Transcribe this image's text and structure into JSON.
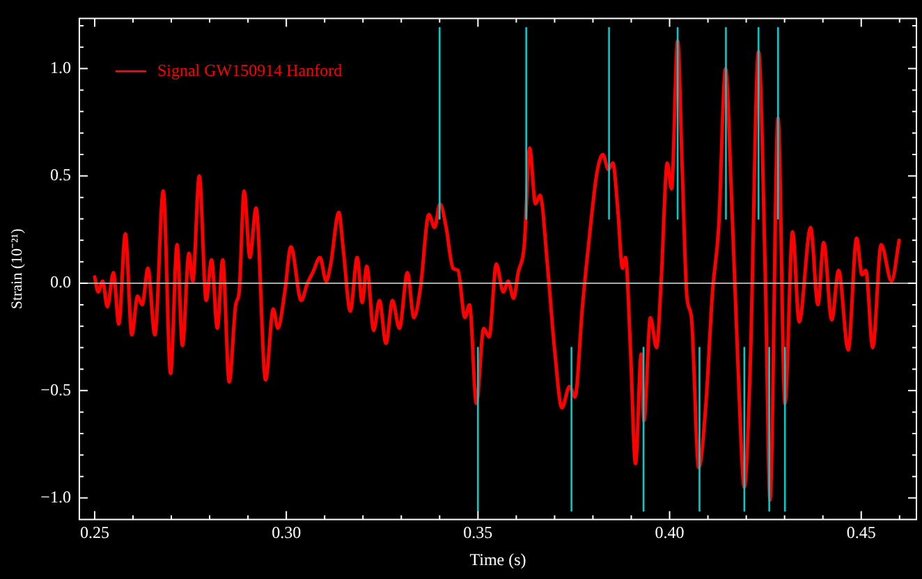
{
  "chart_data": {
    "type": "line",
    "xlabel": "Time (s)",
    "ylabel": "Strain (10⁻²¹)",
    "legend": "top left",
    "xlim": [
      0.246,
      0.4644
    ],
    "ylim": [
      -1.1,
      1.234
    ],
    "xticks": [
      {
        "value": 0.25,
        "label": "0.25"
      },
      {
        "value": 0.26,
        "label": null
      },
      {
        "value": 0.27,
        "label": null
      },
      {
        "value": 0.28,
        "label": null
      },
      {
        "value": 0.29,
        "label": null
      },
      {
        "value": 0.3,
        "label": "0.30"
      },
      {
        "value": 0.31,
        "label": null
      },
      {
        "value": 0.32,
        "label": null
      },
      {
        "value": 0.33,
        "label": null
      },
      {
        "value": 0.34,
        "label": null
      },
      {
        "value": 0.35,
        "label": "0.35"
      },
      {
        "value": 0.36,
        "label": null
      },
      {
        "value": 0.37,
        "label": null
      },
      {
        "value": 0.38,
        "label": null
      },
      {
        "value": 0.39,
        "label": null
      },
      {
        "value": 0.4,
        "label": "0.40"
      },
      {
        "value": 0.41,
        "label": null
      },
      {
        "value": 0.42,
        "label": null
      },
      {
        "value": 0.43,
        "label": null
      },
      {
        "value": 0.44,
        "label": null
      },
      {
        "value": 0.45,
        "label": "0.45"
      },
      {
        "value": 0.46,
        "label": null
      }
    ],
    "yticks": [
      {
        "value": -1.0,
        "label": "−1.0"
      },
      {
        "value": -0.9,
        "label": null
      },
      {
        "value": -0.8,
        "label": null
      },
      {
        "value": -0.7,
        "label": null
      },
      {
        "value": -0.6,
        "label": null
      },
      {
        "value": -0.5,
        "label": "−0.5"
      },
      {
        "value": -0.4,
        "label": null
      },
      {
        "value": -0.3,
        "label": null
      },
      {
        "value": -0.2,
        "label": null
      },
      {
        "value": -0.1,
        "label": null
      },
      {
        "value": 0,
        "label": "0.0"
      },
      {
        "value": 0.1,
        "label": null
      },
      {
        "value": 0.2,
        "label": null
      },
      {
        "value": 0.3,
        "label": null
      },
      {
        "value": 0.4,
        "label": null
      },
      {
        "value": 0.5,
        "label": "0.5"
      },
      {
        "value": 0.6,
        "label": null
      },
      {
        "value": 0.7,
        "label": null
      },
      {
        "value": 0.8,
        "label": null
      },
      {
        "value": 0.9,
        "label": null
      },
      {
        "value": 1.0,
        "label": "1.0"
      },
      {
        "value": 1.1,
        "label": null
      },
      {
        "value": 1.2,
        "label": null
      }
    ],
    "ref_lines": [
      {
        "axis": "y",
        "value": 0,
        "color": "#aaaaaa"
      }
    ],
    "series": [
      {
        "color": "#00cccc",
        "x": [
          0.34,
          0.34,
          null,
          0.3626,
          0.3626,
          null,
          0.3842,
          0.3842,
          null,
          0.4021,
          0.4021,
          null,
          0.4147,
          0.4147,
          null,
          0.4232,
          0.4232,
          null,
          0.4283,
          0.4283,
          null,
          0.35,
          0.35,
          null,
          0.3744,
          0.3744,
          null,
          0.3932,
          0.3932,
          null,
          0.4078,
          0.4078,
          null,
          0.4195,
          0.4195,
          null,
          0.426,
          0.426,
          null,
          0.4301,
          0.4301
        ],
        "values": [
          1.19,
          0.3,
          null,
          1.19,
          0.3,
          null,
          1.19,
          0.3,
          null,
          1.19,
          0.3,
          null,
          1.19,
          0.3,
          null,
          1.19,
          0.3,
          null,
          1.19,
          0.3,
          null,
          -0.3,
          -1.06,
          null,
          -0.3,
          -1.06,
          null,
          -0.3,
          -1.06,
          null,
          -0.3,
          -1.06,
          null,
          -0.3,
          -1.06,
          null,
          -0.3,
          -1.06,
          null,
          -0.3,
          -1.06
        ]
      },
      {
        "name": "Signal GW150914 Hanford",
        "color": "#ff0000",
        "x": [
          0.25,
          0.2509,
          0.2521,
          0.2533,
          0.2549,
          0.2563,
          0.258,
          0.2597,
          0.2612,
          0.2624,
          0.2639,
          0.2657,
          0.2679,
          0.2698,
          0.2715,
          0.2729,
          0.2746,
          0.2756,
          0.2773,
          0.2791,
          0.2805,
          0.282,
          0.2834,
          0.2851,
          0.2868,
          0.2877,
          0.289,
          0.2905,
          0.2921,
          0.2946,
          0.2966,
          0.2978,
          0.2996,
          0.3012,
          0.3039,
          0.3055,
          0.3069,
          0.3088,
          0.3104,
          0.3116,
          0.3137,
          0.3149,
          0.3167,
          0.3185,
          0.3198,
          0.321,
          0.3228,
          0.3243,
          0.326,
          0.3277,
          0.3295,
          0.3316,
          0.3333,
          0.335,
          0.3372,
          0.3387,
          0.3401,
          0.3417,
          0.3435,
          0.3448,
          0.3466,
          0.3478,
          0.3496,
          0.3515,
          0.3529,
          0.3548,
          0.3566,
          0.3579,
          0.3593,
          0.3605,
          0.3621,
          0.3635,
          0.365,
          0.3662,
          0.3682,
          0.37,
          0.3719,
          0.3739,
          0.3753,
          0.3773,
          0.3791,
          0.381,
          0.3826,
          0.384,
          0.3852,
          0.3865,
          0.3877,
          0.3885,
          0.3898,
          0.3911,
          0.3926,
          0.3933,
          0.395,
          0.3966,
          0.3978,
          0.3994,
          0.4005,
          0.4021,
          0.4033,
          0.4045,
          0.4057,
          0.4076,
          0.4094,
          0.4112,
          0.4128,
          0.4146,
          0.4161,
          0.4179,
          0.4195,
          0.421,
          0.4232,
          0.425,
          0.4262,
          0.4283,
          0.4301,
          0.4321,
          0.4338,
          0.4368,
          0.4387,
          0.4402,
          0.4423,
          0.4441,
          0.4466,
          0.4488,
          0.4502,
          0.4512,
          0.453,
          0.4552,
          0.4579,
          0.4599
        ],
        "values": [
          0.03,
          -0.04,
          0.01,
          -0.11,
          0.05,
          -0.19,
          0.23,
          -0.24,
          -0.06,
          -0.1,
          0.07,
          -0.24,
          0.43,
          -0.42,
          0.18,
          -0.29,
          0.14,
          0.01,
          0.5,
          -0.08,
          0.11,
          -0.21,
          0.11,
          -0.46,
          -0.1,
          -0.04,
          0.43,
          0.12,
          0.35,
          -0.45,
          -0.12,
          -0.21,
          -0.04,
          0.17,
          -0.08,
          0.0,
          0.05,
          0.12,
          0.01,
          0.09,
          0.33,
          0.15,
          -0.13,
          0.12,
          -0.09,
          0.08,
          -0.22,
          -0.08,
          -0.28,
          -0.08,
          -0.21,
          0.05,
          -0.16,
          -0.02,
          0.32,
          0.26,
          0.37,
          0.26,
          0.07,
          0.06,
          -0.16,
          -0.1,
          -0.56,
          -0.21,
          -0.25,
          0.09,
          -0.04,
          0.01,
          -0.07,
          0.05,
          0.18,
          0.63,
          0.37,
          0.41,
          0.07,
          -0.31,
          -0.58,
          -0.48,
          -0.53,
          -0.1,
          0.22,
          0.51,
          0.6,
          0.53,
          0.56,
          0.34,
          0.07,
          0.12,
          -0.31,
          -0.84,
          -0.33,
          -0.64,
          -0.16,
          -0.3,
          0.01,
          0.56,
          0.44,
          1.13,
          0.53,
          -0.06,
          -0.16,
          -0.86,
          -0.58,
          -0.04,
          0.26,
          1.0,
          0.43,
          -0.41,
          -0.95,
          -0.41,
          1.08,
          0.01,
          -1.01,
          0.77,
          -0.56,
          0.24,
          -0.18,
          0.26,
          -0.1,
          0.19,
          -0.17,
          0.06,
          -0.31,
          0.21,
          0.04,
          0.06,
          -0.3,
          0.18,
          0.01,
          0.2
        ]
      }
    ]
  }
}
